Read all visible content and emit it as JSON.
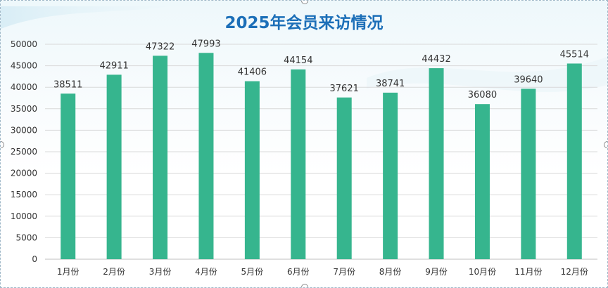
{
  "chart_data": {
    "type": "bar",
    "title": "2025年会员来访情况",
    "categories": [
      "1月份",
      "2月份",
      "3月份",
      "4月份",
      "5月份",
      "6月份",
      "7月份",
      "8月份",
      "9月份",
      "10月份",
      "11月份",
      "12月份"
    ],
    "values": [
      38511,
      42911,
      47322,
      47993,
      41406,
      44154,
      37621,
      38741,
      44432,
      36080,
      39640,
      45514
    ],
    "yticks": [
      "0",
      "5000",
      "10000",
      "15000",
      "20000",
      "25000",
      "30000",
      "35000",
      "40000",
      "45000",
      "50000"
    ],
    "ylim": [
      0,
      50000
    ],
    "grid": true,
    "bar_color": "#36b58e",
    "title_color": "#1c6fb8"
  }
}
